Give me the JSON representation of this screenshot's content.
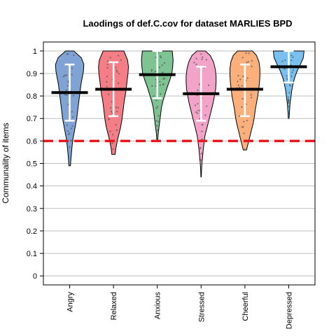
{
  "chart_data": {
    "type": "violin",
    "title": "Laodings of def.C.cov for dataset MARLIES BPD",
    "xlabel": "",
    "ylabel": "Communality of items",
    "ylim": [
      -0.04,
      1.04
    ],
    "yticks": [
      0,
      0.1,
      0.2,
      0.3,
      0.4,
      0.5,
      0.6,
      0.7,
      0.8,
      0.9,
      1
    ],
    "yticklabels": [
      "0",
      "0.1",
      "0.2",
      "0.3",
      "0.4",
      "0.5",
      "0.6",
      "0.7",
      "0.8",
      "0.9",
      "1"
    ],
    "grid": "horizontal",
    "reference_line": 0.6,
    "categories": [
      "Angry",
      "Relaxed",
      "Anxious",
      "Stressed",
      "Cheerful",
      "Depressed"
    ],
    "series": [
      {
        "category": "Angry",
        "color": "#7fa3d4",
        "min": 0.49,
        "max": 1.0,
        "mean": 0.815,
        "lower": 0.69,
        "upper": 0.94,
        "profile": [
          [
            0.49,
            0.02
          ],
          [
            0.52,
            0.03
          ],
          [
            0.55,
            0.045
          ],
          [
            0.58,
            0.06
          ],
          [
            0.61,
            0.08
          ],
          [
            0.64,
            0.11
          ],
          [
            0.67,
            0.14
          ],
          [
            0.7,
            0.17
          ],
          [
            0.73,
            0.19
          ],
          [
            0.76,
            0.21
          ],
          [
            0.79,
            0.23
          ],
          [
            0.82,
            0.25
          ],
          [
            0.85,
            0.27
          ],
          [
            0.88,
            0.3
          ],
          [
            0.91,
            0.33
          ],
          [
            0.94,
            0.34
          ],
          [
            0.97,
            0.28
          ],
          [
            1.0,
            0.1
          ]
        ]
      },
      {
        "category": "Relaxed",
        "color": "#f47d86",
        "min": 0.54,
        "max": 1.0,
        "mean": 0.83,
        "lower": 0.71,
        "upper": 0.95,
        "profile": [
          [
            0.54,
            0.04
          ],
          [
            0.57,
            0.06
          ],
          [
            0.6,
            0.09
          ],
          [
            0.63,
            0.13
          ],
          [
            0.66,
            0.17
          ],
          [
            0.69,
            0.2
          ],
          [
            0.72,
            0.22
          ],
          [
            0.75,
            0.24
          ],
          [
            0.78,
            0.26
          ],
          [
            0.81,
            0.29
          ],
          [
            0.84,
            0.31
          ],
          [
            0.87,
            0.33
          ],
          [
            0.9,
            0.35
          ],
          [
            0.93,
            0.36
          ],
          [
            0.96,
            0.34
          ],
          [
            1.0,
            0.25
          ]
        ]
      },
      {
        "category": "Anxious",
        "color": "#7dc492",
        "min": 0.6,
        "max": 1.0,
        "mean": 0.895,
        "lower": 0.79,
        "upper": 1.0,
        "profile": [
          [
            0.6,
            0.01
          ],
          [
            0.63,
            0.02
          ],
          [
            0.66,
            0.04
          ],
          [
            0.69,
            0.06
          ],
          [
            0.72,
            0.08
          ],
          [
            0.75,
            0.1
          ],
          [
            0.78,
            0.14
          ],
          [
            0.81,
            0.19
          ],
          [
            0.84,
            0.24
          ],
          [
            0.87,
            0.3
          ],
          [
            0.9,
            0.35
          ],
          [
            0.93,
            0.37
          ],
          [
            0.96,
            0.38
          ],
          [
            1.0,
            0.36
          ]
        ]
      },
      {
        "category": "Stressed",
        "color": "#f4a3c8",
        "min": 0.44,
        "max": 1.0,
        "mean": 0.81,
        "lower": 0.69,
        "upper": 0.93,
        "profile": [
          [
            0.44,
            0.005
          ],
          [
            0.47,
            0.01
          ],
          [
            0.5,
            0.02
          ],
          [
            0.53,
            0.035
          ],
          [
            0.56,
            0.05
          ],
          [
            0.59,
            0.07
          ],
          [
            0.62,
            0.09
          ],
          [
            0.65,
            0.13
          ],
          [
            0.68,
            0.17
          ],
          [
            0.71,
            0.21
          ],
          [
            0.74,
            0.25
          ],
          [
            0.77,
            0.29
          ],
          [
            0.8,
            0.32
          ],
          [
            0.83,
            0.35
          ],
          [
            0.86,
            0.36
          ],
          [
            0.89,
            0.36
          ],
          [
            0.92,
            0.34
          ],
          [
            0.95,
            0.3
          ],
          [
            0.98,
            0.22
          ],
          [
            1.0,
            0.1
          ]
        ]
      },
      {
        "category": "Cheerful",
        "color": "#fbb07c",
        "min": 0.56,
        "max": 1.0,
        "mean": 0.83,
        "lower": 0.71,
        "upper": 0.94,
        "profile": [
          [
            0.56,
            0.04
          ],
          [
            0.59,
            0.08
          ],
          [
            0.62,
            0.12
          ],
          [
            0.65,
            0.16
          ],
          [
            0.68,
            0.2
          ],
          [
            0.71,
            0.23
          ],
          [
            0.74,
            0.25
          ],
          [
            0.77,
            0.28
          ],
          [
            0.8,
            0.31
          ],
          [
            0.83,
            0.33
          ],
          [
            0.86,
            0.35
          ],
          [
            0.89,
            0.36
          ],
          [
            0.92,
            0.36
          ],
          [
            0.95,
            0.34
          ],
          [
            0.98,
            0.28
          ],
          [
            1.0,
            0.18
          ]
        ]
      },
      {
        "category": "Depressed",
        "color": "#79c0ef",
        "min": 0.7,
        "max": 1.0,
        "mean": 0.93,
        "lower": 0.86,
        "upper": 1.0,
        "profile": [
          [
            0.7,
            0.01
          ],
          [
            0.73,
            0.02
          ],
          [
            0.76,
            0.03
          ],
          [
            0.79,
            0.05
          ],
          [
            0.82,
            0.07
          ],
          [
            0.85,
            0.1
          ],
          [
            0.88,
            0.14
          ],
          [
            0.91,
            0.2
          ],
          [
            0.94,
            0.28
          ],
          [
            0.97,
            0.35
          ],
          [
            1.0,
            0.37
          ]
        ]
      }
    ]
  }
}
